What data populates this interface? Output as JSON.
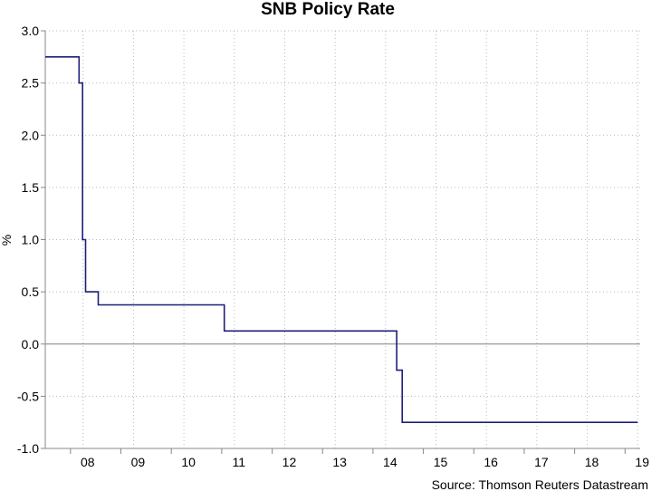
{
  "chart_data": {
    "type": "line",
    "title": "SNB Policy Rate",
    "ylabel": "%",
    "xlabel": "",
    "source": "Source: Thomson Reuters Datastream",
    "ylim": [
      -1.0,
      3.0
    ],
    "xlim": [
      2007.5,
      2019.3
    ],
    "y_ticks": [
      3.0,
      2.5,
      2.0,
      1.5,
      1.0,
      0.5,
      0.0,
      -0.5,
      -1.0
    ],
    "y_tick_labels": [
      "3.0",
      "2.5",
      "2.0",
      "1.5",
      "1.0",
      "0.5",
      "0.0",
      "-0.5",
      "-1.0"
    ],
    "x_ticks": [
      2008.25,
      2009.25,
      2010.25,
      2011.25,
      2012.25,
      2013.25,
      2014.25,
      2015.25,
      2016.25,
      2017.25,
      2018.25,
      2019.25
    ],
    "x_tick_labels": [
      "08",
      "09",
      "10",
      "11",
      "12",
      "13",
      "14",
      "15",
      "16",
      "17",
      "18",
      "19"
    ],
    "grid": true,
    "zero_line": true,
    "colors": {
      "series": "#1f1f7a",
      "axis": "#888888",
      "grid": "#b8b8b8",
      "zero": "#808080"
    },
    "series": [
      {
        "step": true,
        "points": [
          {
            "x": 2007.5,
            "y": 2.75
          },
          {
            "x": 2008.17,
            "y": 2.5
          },
          {
            "x": 2008.24,
            "y": 1.0
          },
          {
            "x": 2008.3,
            "y": 0.5
          },
          {
            "x": 2008.55,
            "y": 0.375
          },
          {
            "x": 2011.05,
            "y": 0.125
          },
          {
            "x": 2014.47,
            "y": -0.25
          },
          {
            "x": 2014.58,
            "y": -0.75
          },
          {
            "x": 2019.25,
            "y": -0.75
          }
        ]
      }
    ]
  }
}
